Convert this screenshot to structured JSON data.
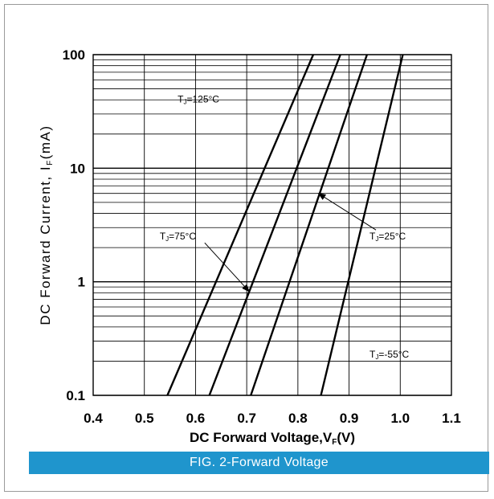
{
  "chart_data": {
    "type": "line",
    "xlabel": "DC Forward Voltage,V",
    "xlabel_sub": "F",
    "xlabel_suffix": "(V)",
    "ylabel": "DC Forward Current, I",
    "ylabel_sub": "F",
    "ylabel_suffix": "(mA)",
    "xlim": [
      0.4,
      1.1
    ],
    "ylim": [
      0.1,
      100
    ],
    "yscale": "log",
    "grid": true,
    "x_ticks": [
      0.4,
      0.5,
      0.6,
      0.7,
      0.8,
      0.9,
      1.0,
      1.1
    ],
    "x_tick_labels": [
      "0.4",
      "0.5",
      "0.6",
      "0.7",
      "0.8",
      "0.9",
      "1.0",
      "1.1"
    ],
    "y_tick_labels": [
      {
        "value": 0.1,
        "label": "0.1"
      },
      {
        "value": 1,
        "label": "1"
      },
      {
        "value": 10,
        "label": "10"
      },
      {
        "value": 100,
        "label": "100"
      }
    ],
    "series": [
      {
        "name": "TJ=125°C",
        "x": [
          0.545,
          0.83
        ],
        "y": [
          0.1,
          100
        ]
      },
      {
        "name": "TJ=75°C",
        "x": [
          0.627,
          0.883
        ],
        "y": [
          0.1,
          100
        ]
      },
      {
        "name": "TJ=25°C",
        "x": [
          0.708,
          0.935
        ],
        "y": [
          0.1,
          100
        ]
      },
      {
        "name": "TJ=-55°C",
        "x": [
          0.845,
          1.005
        ],
        "y": [
          0.1,
          100
        ]
      }
    ],
    "annotations": [
      {
        "main": "T",
        "sub": "J",
        "rest": "=125°C",
        "x": 0.565,
        "y": 38
      },
      {
        "main": "T",
        "sub": "J",
        "rest": "=75°C",
        "x": 0.53,
        "y": 2.35,
        "arrow_to": [
          0.705,
          0.82
        ]
      },
      {
        "main": "T",
        "sub": "J",
        "rest": "=25°C",
        "x": 0.94,
        "y": 2.35,
        "arrow_to": [
          0.84,
          6.0
        ]
      },
      {
        "main": "T",
        "sub": "J",
        "rest": "=-55°C",
        "x": 0.94,
        "y": 0.215
      }
    ]
  },
  "caption": "FIG. 2-Forward  Voltage"
}
